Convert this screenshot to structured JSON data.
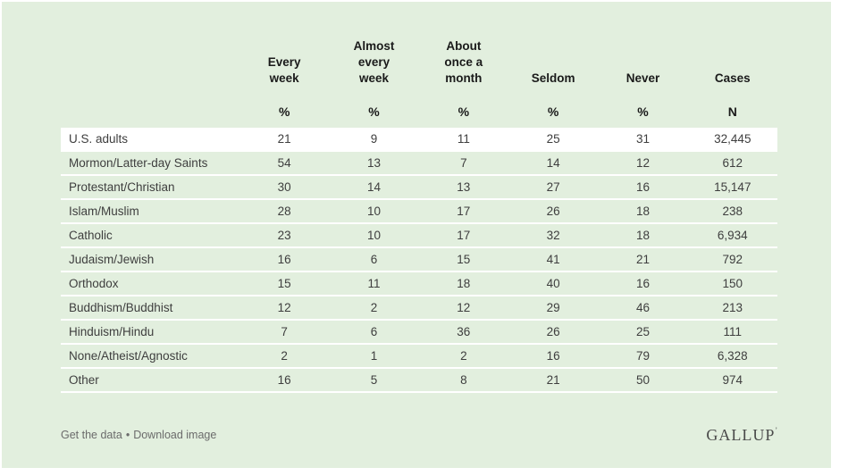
{
  "chart_data": {
    "type": "table",
    "columns": [
      {
        "label": "Every\nweek",
        "unit": "%"
      },
      {
        "label": "Almost\nevery\nweek",
        "unit": "%"
      },
      {
        "label": "About\nonce a\nmonth",
        "unit": "%"
      },
      {
        "label": "Seldom",
        "unit": "%"
      },
      {
        "label": "Never",
        "unit": "%"
      },
      {
        "label": "Cases",
        "unit": "N"
      }
    ],
    "rows": [
      {
        "label": "U.S. adults",
        "highlight": true,
        "values": [
          "21",
          "9",
          "11",
          "25",
          "31",
          "32,445"
        ]
      },
      {
        "label": "Mormon/Latter-day Saints",
        "highlight": false,
        "values": [
          "54",
          "13",
          "7",
          "14",
          "12",
          "612"
        ]
      },
      {
        "label": "Protestant/Christian",
        "highlight": false,
        "values": [
          "30",
          "14",
          "13",
          "27",
          "16",
          "15,147"
        ]
      },
      {
        "label": "Islam/Muslim",
        "highlight": false,
        "values": [
          "28",
          "10",
          "17",
          "26",
          "18",
          "238"
        ]
      },
      {
        "label": "Catholic",
        "highlight": false,
        "values": [
          "23",
          "10",
          "17",
          "32",
          "18",
          "6,934"
        ]
      },
      {
        "label": "Judaism/Jewish",
        "highlight": false,
        "values": [
          "16",
          "6",
          "15",
          "41",
          "21",
          "792"
        ]
      },
      {
        "label": "Orthodox",
        "highlight": false,
        "values": [
          "15",
          "11",
          "18",
          "40",
          "16",
          "150"
        ]
      },
      {
        "label": "Buddhism/Buddhist",
        "highlight": false,
        "values": [
          "12",
          "2",
          "12",
          "29",
          "46",
          "213"
        ]
      },
      {
        "label": "Hinduism/Hindu",
        "highlight": false,
        "values": [
          "7",
          "6",
          "36",
          "26",
          "25",
          "111"
        ]
      },
      {
        "label": "None/Atheist/Agnostic",
        "highlight": false,
        "values": [
          "2",
          "1",
          "2",
          "16",
          "79",
          "6,328"
        ]
      },
      {
        "label": "Other",
        "highlight": false,
        "values": [
          "16",
          "5",
          "8",
          "21",
          "50",
          "974"
        ]
      }
    ]
  },
  "footer": {
    "get_data_label": "Get the data",
    "separator": "•",
    "download_label": "Download image",
    "logo": "GALLUP",
    "logo_mark": "’"
  },
  "colors": {
    "page_background": "#ffffff",
    "card_background": "#e2efde",
    "highlight_row_background": "#ffffff",
    "row_separator": "#ffffff",
    "header_text": "#1a1a1a",
    "body_text": "#3e3e3e",
    "footer_text": "#6b6b6b",
    "logo_text": "#4a4a4a"
  }
}
